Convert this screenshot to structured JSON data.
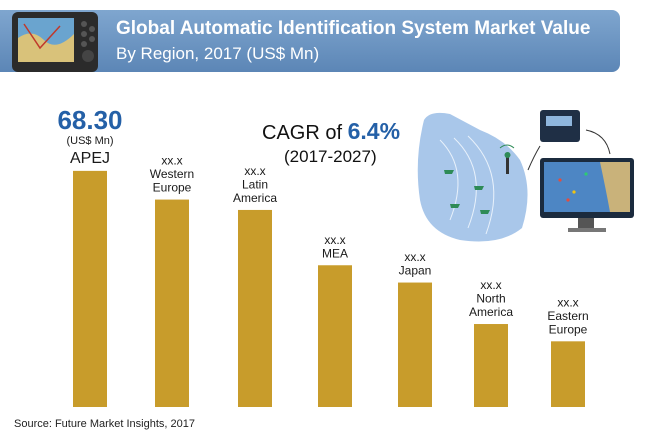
{
  "header": {
    "title": "Global Automatic Identification System Market Value",
    "subtitle": "By Region, 2017 (US$ Mn)"
  },
  "cagr": {
    "prefix": "CAGR of",
    "value": "6.4%",
    "period": "(2017-2027)"
  },
  "source": "Source: Future Market Insights, 2017",
  "colors": {
    "bar": "#c89c2b",
    "accent": "#2460a7",
    "banner": "#6b93c2"
  },
  "chart_data": {
    "type": "bar",
    "title": "Global Automatic Identification System Market Value",
    "subtitle": "By Region, 2017 (US$ Mn)",
    "categories": [
      "APEJ",
      "Western Europe",
      "Latin America",
      "MEA",
      "Japan",
      "North America",
      "Eastern Europe"
    ],
    "category_lines": [
      [
        "APEJ"
      ],
      [
        "Western",
        "Europe"
      ],
      [
        "Latin",
        "America"
      ],
      [
        "MEA"
      ],
      [
        "Japan"
      ],
      [
        "North",
        "America"
      ],
      [
        "Eastern",
        "Europe"
      ]
    ],
    "values": [
      68.3,
      60,
      57,
      41,
      36,
      24,
      19
    ],
    "value_labels": [
      "68.30",
      "xx.x",
      "xx.x",
      "xx.x",
      "xx.x",
      "xx.x",
      "xx.x"
    ],
    "lead_unit": "(US$ Mn)",
    "ylim": [
      0,
      70
    ],
    "grid": false,
    "legend": "none"
  }
}
